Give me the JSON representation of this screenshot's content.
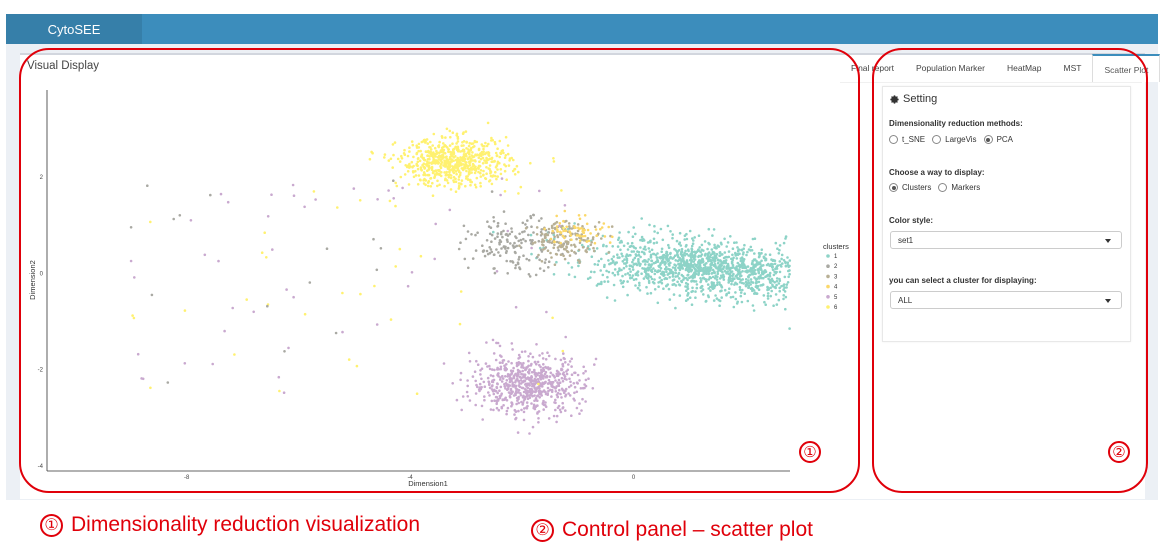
{
  "app": {
    "brand": "CytoSEE"
  },
  "box": {
    "title": "Visual Display"
  },
  "tabs": [
    {
      "label": "Final report",
      "active": false
    },
    {
      "label": "Population Marker",
      "active": false
    },
    {
      "label": "HeatMap",
      "active": false
    },
    {
      "label": "MST",
      "active": false
    },
    {
      "label": "Scatter Plot",
      "active": true
    }
  ],
  "settings": {
    "title": "Setting",
    "title_icon": "gear-icon",
    "reduction": {
      "label": "Dimensionality reduction methods:",
      "options": [
        "t_SNE",
        "LargeVis",
        "PCA"
      ],
      "selected": "PCA"
    },
    "display": {
      "label": "Choose a way to display:",
      "options": [
        "Clusters",
        "Markers"
      ],
      "selected": "Clusters"
    },
    "color_style": {
      "label": "Color style:",
      "value": "set1"
    },
    "cluster_select": {
      "label": "you can select a cluster for displaying:",
      "value": "ALL"
    }
  },
  "chart_data": {
    "type": "scatter",
    "xlabel": "Dimension1",
    "ylabel": "Dimension2",
    "x_ticks": [
      -8,
      -4,
      0
    ],
    "y_ticks": [
      -4,
      -2,
      0,
      2
    ],
    "xlim": [
      -10.5,
      2.8
    ],
    "ylim": [
      -4.1,
      3.8
    ],
    "grid": false,
    "legend": {
      "title": "clusters",
      "placement": "right"
    },
    "series": [
      {
        "name": "1",
        "color": "#8dd3c7",
        "center": [
          1.3,
          0.1
        ],
        "spread": [
          1.7,
          0.65
        ],
        "count": 1400
      },
      {
        "name": "2",
        "color": "#a9a9a3",
        "center": [
          -2.1,
          0.6
        ],
        "spread": [
          0.8,
          0.5
        ],
        "count": 160
      },
      {
        "name": "3",
        "color": "#b8b095",
        "center": [
          -1.2,
          0.7
        ],
        "spread": [
          0.6,
          0.35
        ],
        "count": 140
      },
      {
        "name": "4",
        "color": "#fbd86a",
        "center": [
          -1.0,
          0.9
        ],
        "spread": [
          0.5,
          0.3
        ],
        "count": 60
      },
      {
        "name": "5",
        "color": "#c9a9cf",
        "center": [
          -1.9,
          -2.3
        ],
        "spread": [
          0.9,
          0.55
        ],
        "count": 650
      },
      {
        "name": "6",
        "color": "#fff170",
        "center": [
          -3.2,
          2.3
        ],
        "spread": [
          0.9,
          0.45
        ],
        "count": 650
      }
    ]
  },
  "annotations": [
    {
      "number": "①",
      "caption": "Dimensionality reduction visualization"
    },
    {
      "number": "②",
      "caption": "Control panel – scatter plot"
    }
  ]
}
